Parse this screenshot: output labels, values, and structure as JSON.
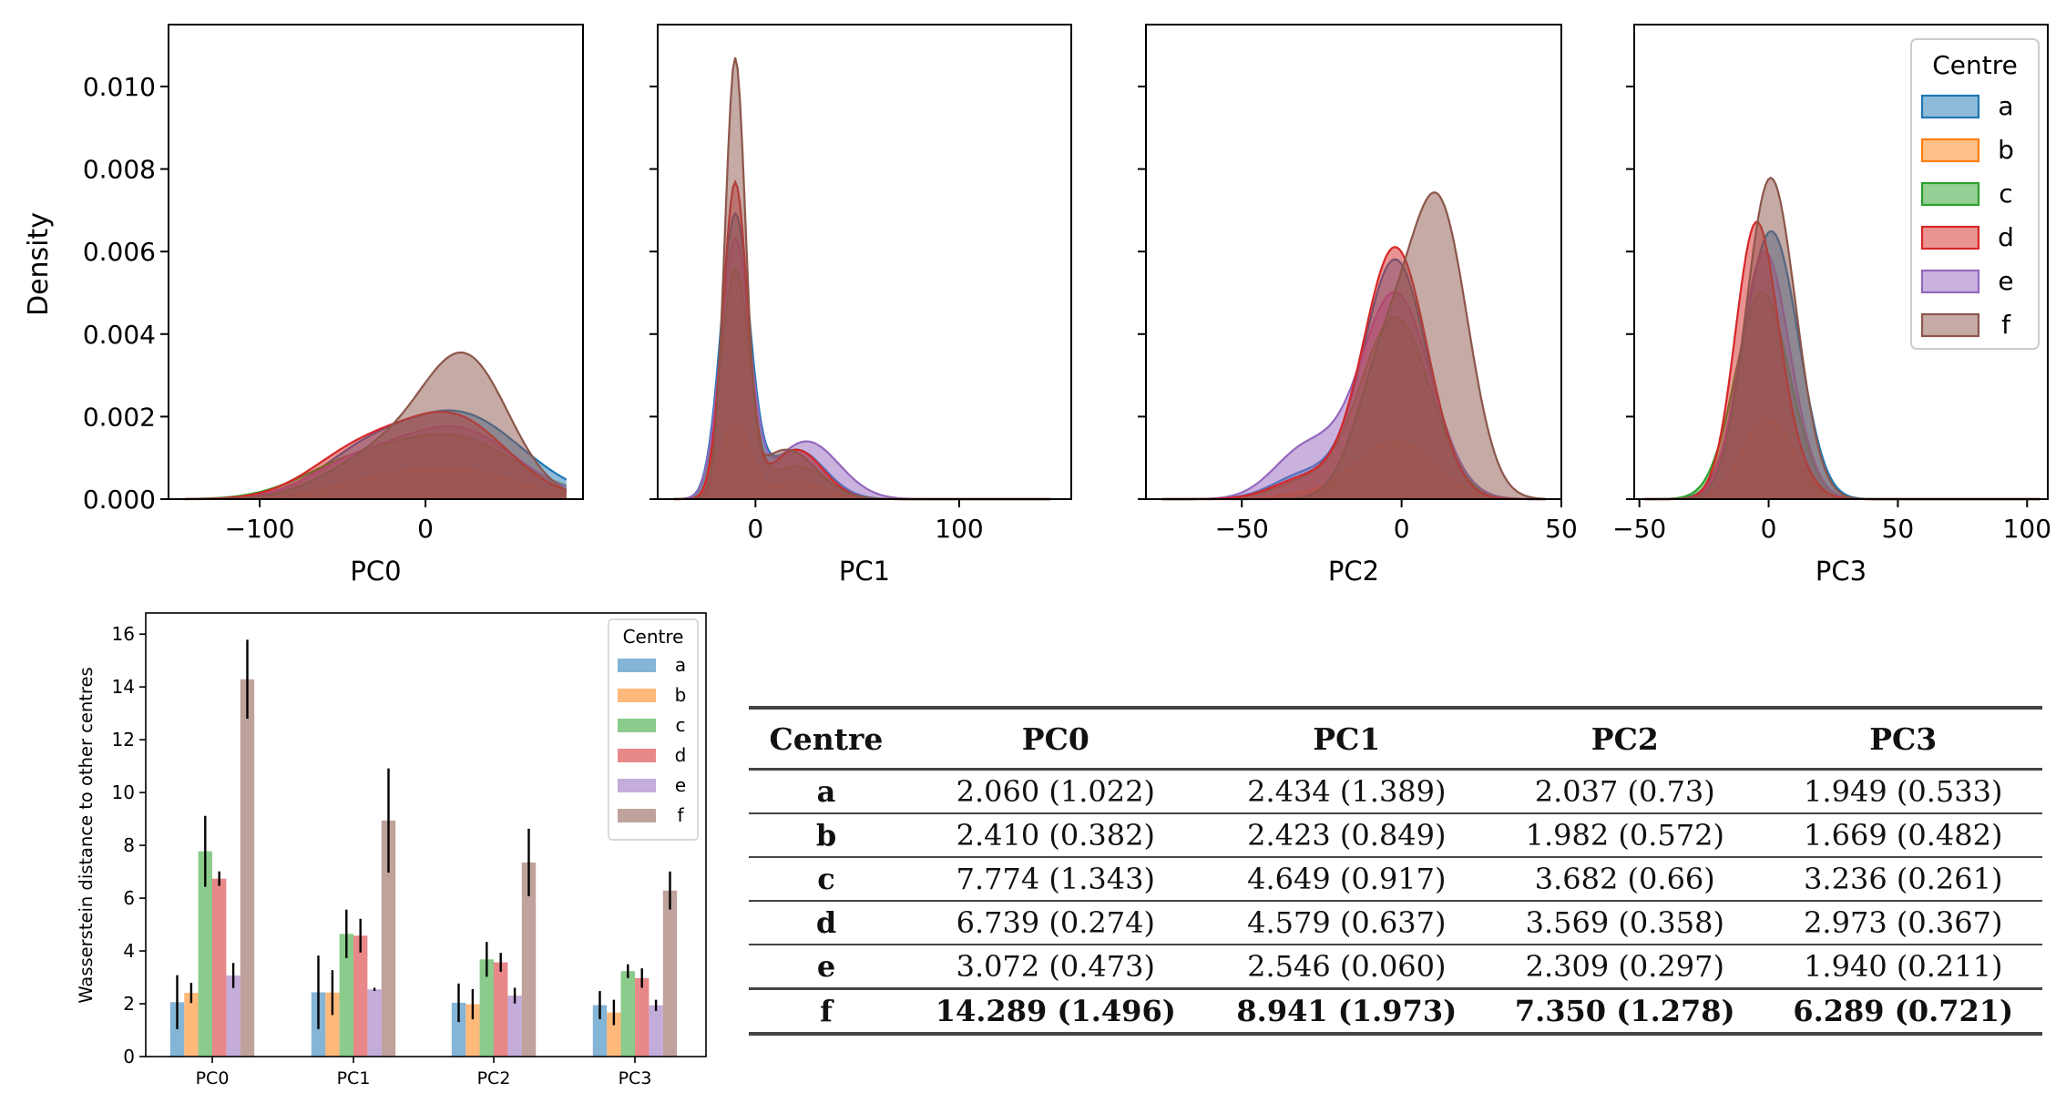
{
  "colors": {
    "a": "#1f77b4",
    "b": "#ff7f0e",
    "c": "#2ca02c",
    "d": "#d62728",
    "e": "#9467bd",
    "f": "#8c564b"
  },
  "chart_data": [
    {
      "type": "area",
      "id": "kde",
      "ylabel": "Density",
      "ylim": [
        0,
        0.0115
      ],
      "yticks": [
        0.0,
        0.002,
        0.004,
        0.006,
        0.008,
        0.01
      ],
      "ytick_labels": [
        "0.000",
        "0.002",
        "0.004",
        "0.006",
        "0.008",
        "0.010"
      ],
      "legend": {
        "title": "Centre",
        "entries": [
          "a",
          "b",
          "c",
          "d",
          "e",
          "f"
        ],
        "position": "top-right"
      },
      "draw_order": [
        "a",
        "b",
        "c",
        "e",
        "d",
        "f"
      ],
      "panels": [
        {
          "xlabel": "PC0",
          "xlim": [
            -155,
            95
          ],
          "xticks": [
            -100,
            0
          ],
          "xtick_labels": [
            "−100",
            "0"
          ],
          "support": [
            -145,
            85
          ],
          "series": [
            {
              "name": "a",
              "peaks": [
                [
                  20,
                  0.00205,
                  38
                ],
                [
                  -40,
                  0.0008,
                  28
                ]
              ]
            },
            {
              "name": "b",
              "peaks": [
                [
                  15,
                  0.00072,
                  38
                ],
                [
                  -40,
                  0.0002,
                  28
                ]
              ]
            },
            {
              "name": "c",
              "peaks": [
                [
                  15,
                  0.0015,
                  40
                ],
                [
                  -50,
                  0.0006,
                  30
                ]
              ]
            },
            {
              "name": "d",
              "peaks": [
                [
                  18,
                  0.0019,
                  32
                ],
                [
                  -40,
                  0.0011,
                  30
                ]
              ]
            },
            {
              "name": "e",
              "peaks": [
                [
                  18,
                  0.0017,
                  36
                ],
                [
                  -45,
                  0.0007,
                  28
                ]
              ]
            },
            {
              "name": "f",
              "peaks": [
                [
                  25,
                  0.0032,
                  26
                ],
                [
                  -25,
                  0.0011,
                  32
                ]
              ]
            }
          ]
        },
        {
          "xlabel": "PC1",
          "xlim": [
            -48,
            155
          ],
          "xticks": [
            0,
            100
          ],
          "xtick_labels": [
            "0",
            "100"
          ],
          "support": [
            -40,
            145
          ],
          "series": [
            {
              "name": "a",
              "peaks": [
                [
                  -10,
                  0.0068,
                  7
                ],
                [
                  20,
                  0.0012,
                  14
                ]
              ]
            },
            {
              "name": "b",
              "peaks": [
                [
                  -10,
                  0.0018,
                  7
                ],
                [
                  20,
                  0.0004,
                  14
                ]
              ]
            },
            {
              "name": "c",
              "peaks": [
                [
                  -10,
                  0.0055,
                  7
                ],
                [
                  20,
                  0.0008,
                  14
                ]
              ]
            },
            {
              "name": "d",
              "peaks": [
                [
                  -10,
                  0.0076,
                  6
                ],
                [
                  20,
                  0.0012,
                  13
                ]
              ]
            },
            {
              "name": "e",
              "peaks": [
                [
                  -10,
                  0.0062,
                  7
                ],
                [
                  25,
                  0.0014,
                  16
                ]
              ]
            },
            {
              "name": "f",
              "peaks": [
                [
                  -10,
                  0.0104,
                  5
                ],
                [
                  15,
                  0.0012,
                  15
                ]
              ]
            }
          ]
        },
        {
          "xlabel": "PC2",
          "xlim": [
            -80,
            50
          ],
          "xticks": [
            -50,
            0,
            50
          ],
          "xtick_labels": [
            "−50",
            "0",
            "50"
          ],
          "support": [
            -75,
            45
          ],
          "series": [
            {
              "name": "a",
              "peaks": [
                [
                  -2,
                  0.0058,
                  10
                ],
                [
                  -30,
                  0.0006,
                  10
                ]
              ]
            },
            {
              "name": "b",
              "peaks": [
                [
                  -2,
                  0.0014,
                  12
                ],
                [
                  -30,
                  0.0001,
                  10
                ]
              ]
            },
            {
              "name": "c",
              "peaks": [
                [
                  -2,
                  0.0044,
                  11
                ],
                [
                  -30,
                  0.0004,
                  10
                ]
              ]
            },
            {
              "name": "d",
              "peaks": [
                [
                  -2,
                  0.0061,
                  10
                ],
                [
                  -30,
                  0.0005,
                  10
                ]
              ]
            },
            {
              "name": "e",
              "peaks": [
                [
                  -2,
                  0.005,
                  11
                ],
                [
                  -30,
                  0.0012,
                  10
                ]
              ]
            },
            {
              "name": "f",
              "peaks": [
                [
                  12,
                  0.0068,
                  9
                ],
                [
                  -5,
                  0.0032,
                  9
                ]
              ]
            }
          ]
        },
        {
          "xlabel": "PC3",
          "xlim": [
            -52,
            108
          ],
          "xticks": [
            -50,
            0,
            50,
            100
          ],
          "xtick_labels": [
            "−50",
            "0",
            "50",
            "100"
          ],
          "support": [
            -48,
            105
          ],
          "series": [
            {
              "name": "a",
              "peaks": [
                [
                  0,
                  0.0061,
                  10
                ],
                [
                  10,
                  0.0008,
                  8
                ]
              ]
            },
            {
              "name": "b",
              "peaks": [
                [
                  -2,
                  0.0018,
                  9
                ],
                [
                  10,
                  0.0004,
                  8
                ]
              ]
            },
            {
              "name": "c",
              "peaks": [
                [
                  -3,
                  0.0049,
                  10
                ],
                [
                  10,
                  0.0004,
                  8
                ]
              ]
            },
            {
              "name": "d",
              "peaks": [
                [
                  -5,
                  0.0065,
                  8
                ],
                [
                  8,
                  0.0008,
                  8
                ]
              ]
            },
            {
              "name": "e",
              "peaks": [
                [
                  -2,
                  0.0058,
                  9
                ],
                [
                  10,
                  0.0006,
                  8
                ]
              ]
            },
            {
              "name": "f",
              "peaks": [
                [
                  0,
                  0.0073,
                  9
                ],
                [
                  10,
                  0.001,
                  8
                ]
              ]
            }
          ]
        }
      ]
    },
    {
      "type": "bar",
      "id": "wasserstein",
      "ylabel": "Wasserstein distance to other centres",
      "categories": [
        "PC0",
        "PC1",
        "PC2",
        "PC3"
      ],
      "ylim": [
        0,
        16.8
      ],
      "yticks": [
        0,
        2,
        4,
        6,
        8,
        10,
        12,
        14,
        16
      ],
      "ytick_labels": [
        "0",
        "2",
        "4",
        "6",
        "8",
        "10",
        "12",
        "14",
        "16"
      ],
      "legend": {
        "title": "Centre",
        "position": "top-right"
      },
      "series": [
        {
          "name": "a",
          "values": [
            2.06,
            2.434,
            2.037,
            1.949
          ],
          "errors": [
            1.022,
            1.389,
            0.73,
            0.533
          ]
        },
        {
          "name": "b",
          "values": [
            2.41,
            2.423,
            1.982,
            1.669
          ],
          "errors": [
            0.382,
            0.849,
            0.572,
            0.482
          ]
        },
        {
          "name": "c",
          "values": [
            7.774,
            4.649,
            3.682,
            3.236
          ],
          "errors": [
            1.343,
            0.917,
            0.66,
            0.261
          ]
        },
        {
          "name": "d",
          "values": [
            6.739,
            4.579,
            3.569,
            2.973
          ],
          "errors": [
            0.274,
            0.637,
            0.358,
            0.367
          ]
        },
        {
          "name": "e",
          "values": [
            3.072,
            2.546,
            2.309,
            1.94
          ],
          "errors": [
            0.473,
            0.06,
            0.297,
            0.211
          ]
        },
        {
          "name": "f",
          "values": [
            14.289,
            8.941,
            7.35,
            6.289
          ],
          "errors": [
            1.496,
            1.973,
            1.278,
            0.721
          ]
        }
      ]
    }
  ],
  "table": {
    "headers": [
      "Centre",
      "PC0",
      "PC1",
      "PC2",
      "PC3"
    ],
    "rows": [
      {
        "centre": "a",
        "bold": false,
        "cells": [
          "2.060 (1.022)",
          "2.434 (1.389)",
          "2.037 (0.73)",
          "1.949 (0.533)"
        ]
      },
      {
        "centre": "b",
        "bold": false,
        "cells": [
          "2.410 (0.382)",
          "2.423 (0.849)",
          "1.982 (0.572)",
          "1.669 (0.482)"
        ]
      },
      {
        "centre": "c",
        "bold": false,
        "cells": [
          "7.774 (1.343)",
          "4.649 (0.917)",
          "3.682 (0.66)",
          "3.236 (0.261)"
        ]
      },
      {
        "centre": "d",
        "bold": false,
        "cells": [
          "6.739 (0.274)",
          "4.579 (0.637)",
          "3.569 (0.358)",
          "2.973 (0.367)"
        ]
      },
      {
        "centre": "e",
        "bold": false,
        "cells": [
          "3.072 (0.473)",
          "2.546 (0.060)",
          "2.309 (0.297)",
          "1.940 (0.211)"
        ]
      },
      {
        "centre": "f",
        "bold": true,
        "cells": [
          "14.289 (1.496)",
          "8.941 (1.973)",
          "7.350 (1.278)",
          "6.289 (0.721)"
        ]
      }
    ]
  }
}
